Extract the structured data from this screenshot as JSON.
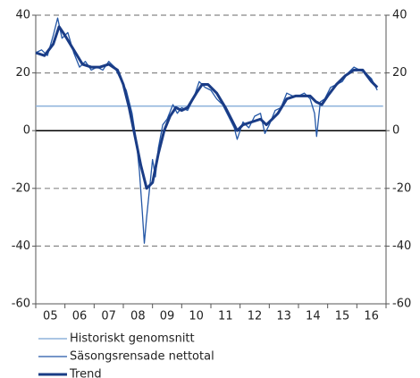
{
  "chart_data": {
    "type": "line",
    "xlim": [
      2005,
      2017
    ],
    "xticks": [
      {
        "value": 2005.5,
        "label": "05"
      },
      {
        "value": 2006.5,
        "label": "06"
      },
      {
        "value": 2007.5,
        "label": "07"
      },
      {
        "value": 2008.5,
        "label": "08"
      },
      {
        "value": 2009.5,
        "label": "09"
      },
      {
        "value": 2010.5,
        "label": "10"
      },
      {
        "value": 2011.5,
        "label": "11"
      },
      {
        "value": 2012.5,
        "label": "12"
      },
      {
        "value": 2013.5,
        "label": "13"
      },
      {
        "value": 2014.5,
        "label": "14"
      },
      {
        "value": 2015.5,
        "label": "15"
      },
      {
        "value": 2016.5,
        "label": "16"
      }
    ],
    "ylim": [
      -60,
      40
    ],
    "yticks": [
      -60,
      -40,
      -20,
      0,
      20,
      40
    ],
    "grid": true,
    "legend": "bottom-left",
    "series": [
      {
        "name": "Historiskt genomsnitt",
        "color": "#8fb3dc",
        "width": 1.5,
        "x": [
          2005,
          2016.9
        ],
        "values": [
          8.5,
          8.5
        ]
      },
      {
        "name": "Säsongsrensade nettotal",
        "color": "#2457a6",
        "width": 1.3,
        "x": [
          2005.0,
          2005.2,
          2005.4,
          2005.6,
          2005.75,
          2005.9,
          2006.1,
          2006.3,
          2006.5,
          2006.7,
          2006.9,
          2007.1,
          2007.3,
          2007.5,
          2007.7,
          2007.9,
          2008.1,
          2008.3,
          2008.45,
          2008.55,
          2008.65,
          2008.72,
          2008.8,
          2008.9,
          2009.0,
          2009.1,
          2009.2,
          2009.35,
          2009.5,
          2009.7,
          2009.85,
          2010.0,
          2010.2,
          2010.4,
          2010.6,
          2010.8,
          2011.0,
          2011.2,
          2011.4,
          2011.6,
          2011.8,
          2011.9,
          2012.1,
          2012.3,
          2012.5,
          2012.7,
          2012.85,
          2013.0,
          2013.2,
          2013.4,
          2013.6,
          2013.8,
          2014.0,
          2014.2,
          2014.4,
          2014.55,
          2014.62,
          2014.75,
          2014.9,
          2015.1,
          2015.3,
          2015.5,
          2015.7,
          2015.9,
          2016.1,
          2016.3,
          2016.5,
          2016.7
        ],
        "values": [
          27,
          28,
          26,
          33,
          39,
          32,
          34,
          27,
          22,
          24,
          21,
          22,
          21,
          24,
          22,
          18,
          14,
          6,
          -4,
          -14,
          -28,
          -39,
          -30,
          -20,
          -10,
          -16,
          -6,
          2,
          4,
          9,
          6,
          8,
          7,
          11,
          17,
          15,
          14,
          11,
          9,
          5,
          1,
          -3,
          3,
          1,
          5,
          6,
          -1,
          2,
          7,
          8,
          13,
          12,
          12,
          13,
          11,
          6,
          -2,
          10,
          11,
          15,
          16,
          17,
          20,
          22,
          21,
          20,
          18,
          14
        ]
      },
      {
        "name": "Trend",
        "color": "#1a3c86",
        "width": 3,
        "x": [
          2005.0,
          2005.3,
          2005.6,
          2005.8,
          2006.0,
          2006.3,
          2006.6,
          2006.9,
          2007.2,
          2007.5,
          2007.8,
          2008.0,
          2008.2,
          2008.4,
          2008.6,
          2008.8,
          2009.0,
          2009.2,
          2009.4,
          2009.6,
          2009.8,
          2010.0,
          2010.2,
          2010.5,
          2010.7,
          2010.9,
          2011.2,
          2011.5,
          2011.7,
          2011.9,
          2012.1,
          2012.4,
          2012.7,
          2012.9,
          2013.1,
          2013.3,
          2013.6,
          2013.9,
          2014.2,
          2014.4,
          2014.6,
          2014.8,
          2015.0,
          2015.3,
          2015.6,
          2015.9,
          2016.2,
          2016.5,
          2016.7
        ],
        "values": [
          27,
          26,
          30,
          36,
          33,
          28,
          23,
          22,
          22,
          23,
          21,
          16,
          8,
          -2,
          -12,
          -20,
          -18,
          -8,
          0,
          5,
          8,
          7,
          8,
          13,
          16,
          16,
          13,
          8,
          4,
          0,
          2,
          3,
          4,
          2,
          4,
          6,
          11,
          12,
          12,
          12,
          10,
          9,
          12,
          16,
          19,
          21,
          21,
          17,
          15
        ]
      }
    ]
  }
}
